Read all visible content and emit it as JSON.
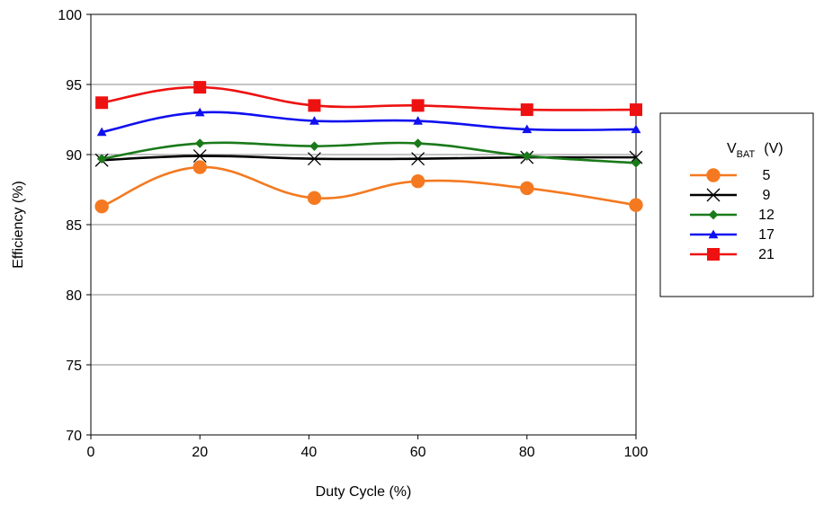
{
  "chart_data": {
    "type": "line",
    "xlabel": "Duty Cycle (%)",
    "ylabel": "Efficiency (%)",
    "xlim": [
      0,
      100
    ],
    "ylim": [
      70,
      100
    ],
    "xticks": [
      0,
      20,
      40,
      60,
      80,
      100
    ],
    "yticks": [
      70,
      75,
      80,
      85,
      90,
      95,
      100
    ],
    "grid": "horizontal",
    "legend": {
      "placement": "right",
      "title_main": "V",
      "title_sub": "BAT",
      "title_unit": "(V)"
    },
    "series": [
      {
        "name": "5",
        "color": "#f47920",
        "marker": "circle",
        "x": [
          2,
          20,
          41,
          60,
          80,
          100
        ],
        "y": [
          86.3,
          89.1,
          86.9,
          88.1,
          87.6,
          86.4
        ]
      },
      {
        "name": "9",
        "color": "#000000",
        "marker": "x",
        "x": [
          2,
          20,
          41,
          60,
          80,
          100
        ],
        "y": [
          89.6,
          89.9,
          89.7,
          89.7,
          89.8,
          89.8
        ]
      },
      {
        "name": "12",
        "color": "#1a7a1a",
        "marker": "diamond",
        "x": [
          2,
          20,
          41,
          60,
          80,
          100
        ],
        "y": [
          89.7,
          90.8,
          90.6,
          90.8,
          89.9,
          89.4
        ]
      },
      {
        "name": "17",
        "color": "#1010f0",
        "marker": "triangle",
        "x": [
          2,
          20,
          41,
          60,
          80,
          100
        ],
        "y": [
          91.6,
          93.0,
          92.4,
          92.4,
          91.8,
          91.8
        ]
      },
      {
        "name": "21",
        "color": "#ee1111",
        "marker": "square",
        "x": [
          2,
          20,
          41,
          60,
          80,
          100
        ],
        "y": [
          93.7,
          94.8,
          93.5,
          93.5,
          93.2,
          93.2
        ]
      }
    ]
  }
}
